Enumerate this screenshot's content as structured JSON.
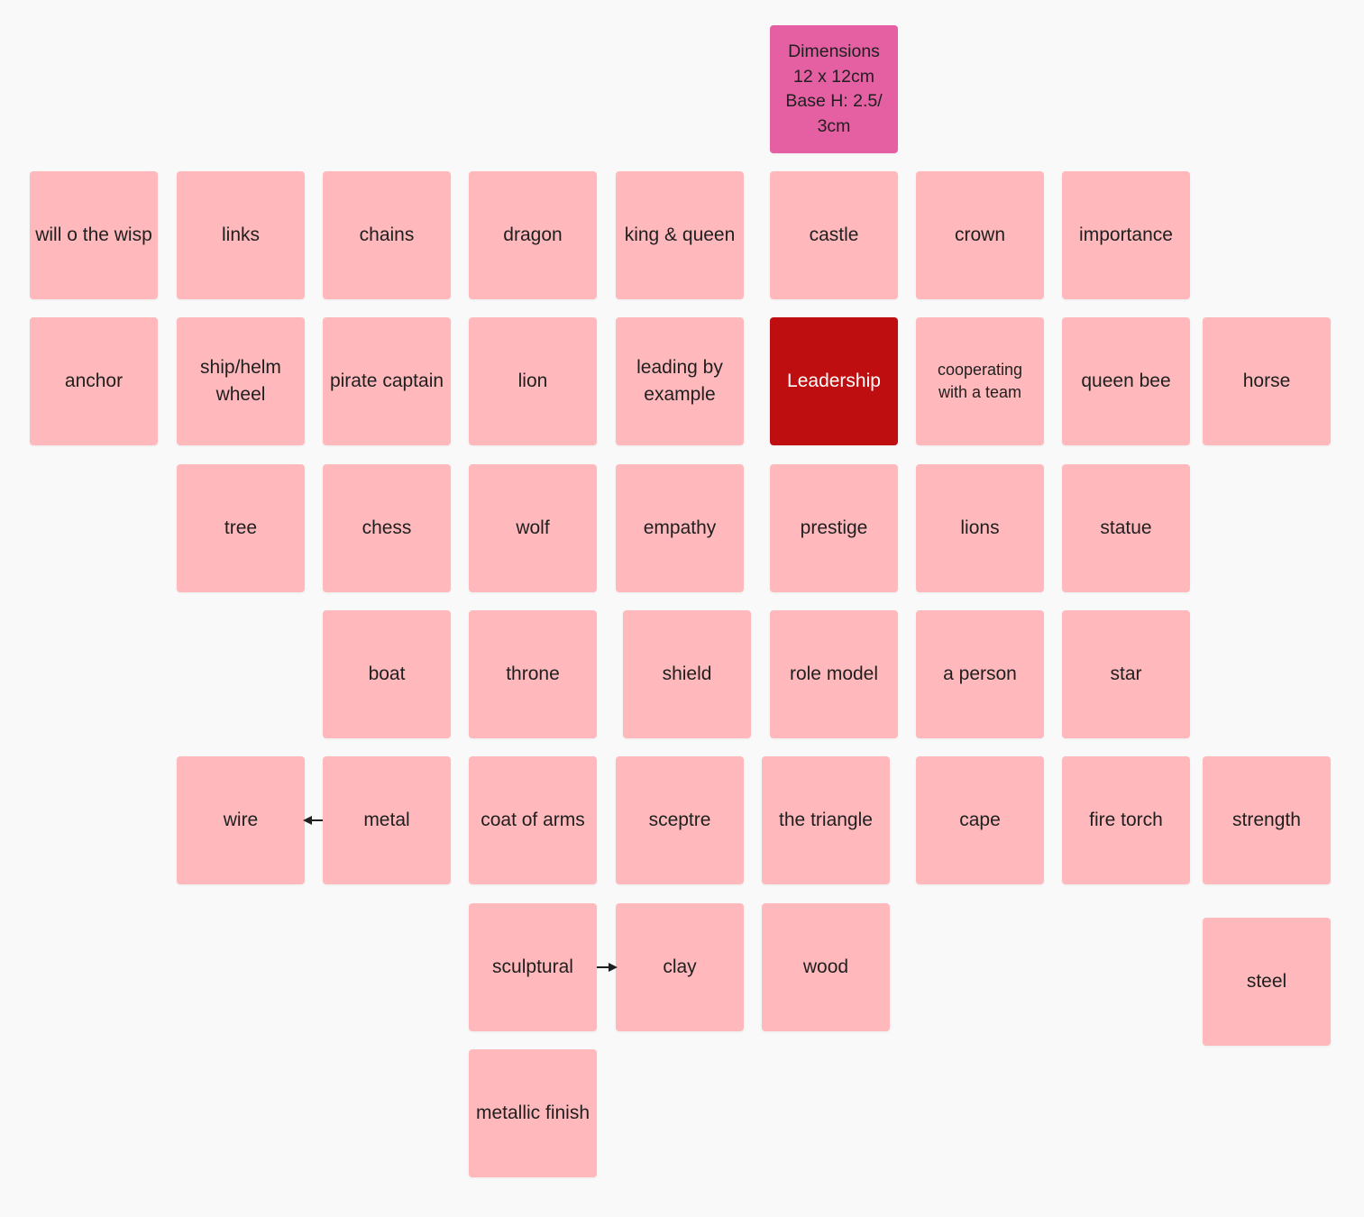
{
  "colors": {
    "background": "#f9f9f9",
    "note": "#ffb9bc",
    "dimensions_note": "#e460a3",
    "central_note": "#bf0e10",
    "central_text": "#ffffff",
    "arrow": "#1f1f1f"
  },
  "notes": [
    {
      "id": "dimensions",
      "text": "Dimensions 12 x 12cm Base H: 2.5/ 3cm",
      "color": "dimensions_note",
      "style": "dim"
    },
    {
      "id": "will-o-the-wisp",
      "text": "will o the wisp"
    },
    {
      "id": "links",
      "text": "links"
    },
    {
      "id": "chains",
      "text": "chains"
    },
    {
      "id": "dragon",
      "text": "dragon"
    },
    {
      "id": "king-queen",
      "text": "king & queen"
    },
    {
      "id": "castle",
      "text": "castle"
    },
    {
      "id": "crown",
      "text": "crown"
    },
    {
      "id": "importance",
      "text": "importance"
    },
    {
      "id": "anchor",
      "text": "anchor"
    },
    {
      "id": "ship-helm-wheel",
      "text": "ship/helm wheel"
    },
    {
      "id": "pirate-captain",
      "text": "pirate captain"
    },
    {
      "id": "lion",
      "text": "lion"
    },
    {
      "id": "leading-by-example",
      "text": "leading by example"
    },
    {
      "id": "leadership",
      "text": "Leadership",
      "color": "central_note",
      "textColor": "central_text"
    },
    {
      "id": "cooperating-with-a-team",
      "text": "cooperating with a team",
      "style": "small"
    },
    {
      "id": "queen-bee",
      "text": "queen bee"
    },
    {
      "id": "horse",
      "text": "horse"
    },
    {
      "id": "tree",
      "text": "tree"
    },
    {
      "id": "chess",
      "text": "chess"
    },
    {
      "id": "wolf",
      "text": "wolf"
    },
    {
      "id": "empathy",
      "text": "empathy"
    },
    {
      "id": "prestige",
      "text": "prestige"
    },
    {
      "id": "lions",
      "text": "lions"
    },
    {
      "id": "statue",
      "text": "statue"
    },
    {
      "id": "boat",
      "text": "boat"
    },
    {
      "id": "throne",
      "text": "throne"
    },
    {
      "id": "shield",
      "text": "shield"
    },
    {
      "id": "role-model",
      "text": "role model"
    },
    {
      "id": "a-person",
      "text": "a person"
    },
    {
      "id": "star",
      "text": "star"
    },
    {
      "id": "wire",
      "text": "wire"
    },
    {
      "id": "metal",
      "text": "metal"
    },
    {
      "id": "coat-of-arms",
      "text": "coat of arms"
    },
    {
      "id": "sceptre",
      "text": "sceptre"
    },
    {
      "id": "the-triangle",
      "text": "the triangle"
    },
    {
      "id": "cape",
      "text": "cape"
    },
    {
      "id": "fire-torch",
      "text": "fire torch"
    },
    {
      "id": "strength",
      "text": "strength"
    },
    {
      "id": "sculptural",
      "text": "sculptural"
    },
    {
      "id": "clay",
      "text": "clay"
    },
    {
      "id": "wood",
      "text": "wood"
    },
    {
      "id": "steel",
      "text": "steel"
    },
    {
      "id": "metallic-finish",
      "text": "metallic finish"
    }
  ],
  "connectors": [
    {
      "from": "metal",
      "to": "wire"
    },
    {
      "from": "sculptural",
      "to": "clay"
    }
  ]
}
